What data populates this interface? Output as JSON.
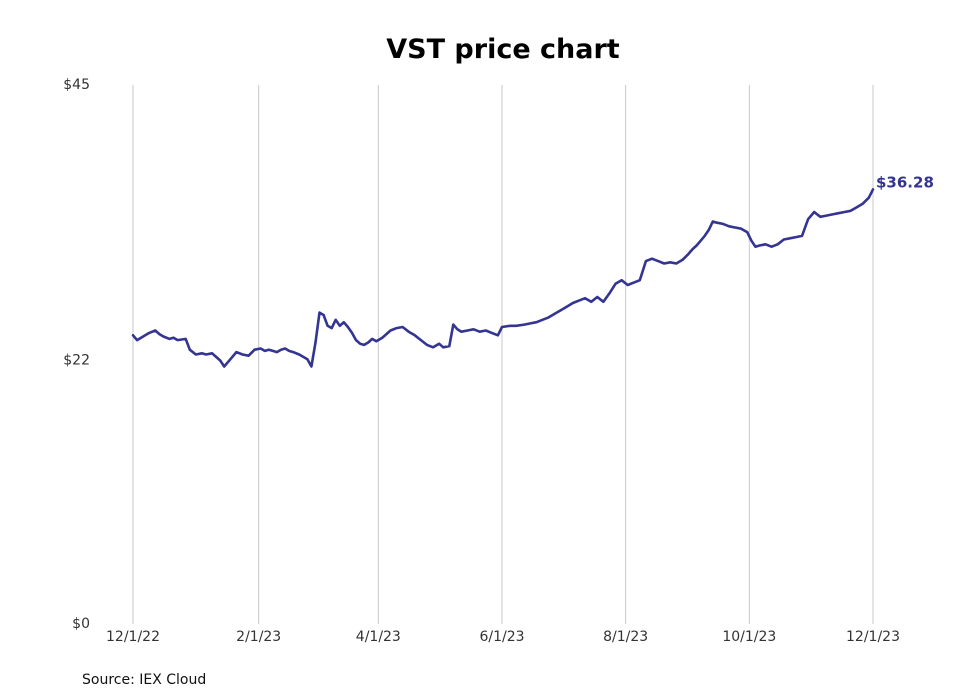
{
  "chart_data": {
    "type": "line",
    "title": "VST price chart",
    "xlabel": "",
    "ylabel": "",
    "x_ticks": [
      "12/1/22",
      "2/1/23",
      "4/1/23",
      "6/1/23",
      "8/1/23",
      "10/1/23",
      "12/1/23"
    ],
    "x_range": [
      "2022-12-01",
      "2023-12-01"
    ],
    "y_ticks": [
      "$0",
      "$22",
      "$45"
    ],
    "y_tick_values": [
      0,
      22,
      45
    ],
    "ylim": [
      0,
      45
    ],
    "grid": "vertical",
    "line_color": "#343493",
    "gridline_color": "#c8c8c8",
    "end_label": "$36.28",
    "source": "Source: IEX Cloud",
    "series": [
      {
        "values": [
          [
            "2022-12-01",
            24.1
          ],
          [
            "2022-12-03",
            23.7
          ],
          [
            "2022-12-05",
            23.9
          ],
          [
            "2022-12-07",
            24.1
          ],
          [
            "2022-12-09",
            24.3
          ],
          [
            "2022-12-12",
            24.5
          ],
          [
            "2022-12-14",
            24.2
          ],
          [
            "2022-12-16",
            24.0
          ],
          [
            "2022-12-19",
            23.8
          ],
          [
            "2022-12-21",
            23.9
          ],
          [
            "2022-12-23",
            23.7
          ],
          [
            "2022-12-27",
            23.8
          ],
          [
            "2022-12-29",
            22.9
          ],
          [
            "2023-01-01",
            22.5
          ],
          [
            "2023-01-04",
            22.6
          ],
          [
            "2023-01-06",
            22.5
          ],
          [
            "2023-01-09",
            22.6
          ],
          [
            "2023-01-11",
            22.3
          ],
          [
            "2023-01-13",
            22.0
          ],
          [
            "2023-01-15",
            21.5
          ],
          [
            "2023-01-17",
            21.9
          ],
          [
            "2023-01-19",
            22.3
          ],
          [
            "2023-01-21",
            22.7
          ],
          [
            "2023-01-24",
            22.5
          ],
          [
            "2023-01-27",
            22.4
          ],
          [
            "2023-01-30",
            22.9
          ],
          [
            "2023-02-02",
            23.0
          ],
          [
            "2023-02-04",
            22.8
          ],
          [
            "2023-02-06",
            22.9
          ],
          [
            "2023-02-08",
            22.8
          ],
          [
            "2023-02-10",
            22.7
          ],
          [
            "2023-02-12",
            22.9
          ],
          [
            "2023-02-14",
            23.0
          ],
          [
            "2023-02-16",
            22.8
          ],
          [
            "2023-02-18",
            22.7
          ],
          [
            "2023-02-21",
            22.5
          ],
          [
            "2023-02-23",
            22.3
          ],
          [
            "2023-02-25",
            22.1
          ],
          [
            "2023-02-27",
            21.5
          ],
          [
            "2023-03-01",
            23.5
          ],
          [
            "2023-03-03",
            26.0
          ],
          [
            "2023-03-05",
            25.8
          ],
          [
            "2023-03-07",
            24.9
          ],
          [
            "2023-03-09",
            24.7
          ],
          [
            "2023-03-11",
            25.4
          ],
          [
            "2023-03-13",
            24.9
          ],
          [
            "2023-03-15",
            25.2
          ],
          [
            "2023-03-17",
            24.8
          ],
          [
            "2023-03-19",
            24.3
          ],
          [
            "2023-03-21",
            23.7
          ],
          [
            "2023-03-23",
            23.4
          ],
          [
            "2023-03-25",
            23.3
          ],
          [
            "2023-03-27",
            23.5
          ],
          [
            "2023-03-29",
            23.8
          ],
          [
            "2023-03-31",
            23.6
          ],
          [
            "2023-04-03",
            23.9
          ],
          [
            "2023-04-05",
            24.2
          ],
          [
            "2023-04-07",
            24.5
          ],
          [
            "2023-04-10",
            24.7
          ],
          [
            "2023-04-13",
            24.8
          ],
          [
            "2023-04-16",
            24.4
          ],
          [
            "2023-04-19",
            24.1
          ],
          [
            "2023-04-22",
            23.7
          ],
          [
            "2023-04-25",
            23.3
          ],
          [
            "2023-04-28",
            23.1
          ],
          [
            "2023-05-01",
            23.4
          ],
          [
            "2023-05-03",
            23.1
          ],
          [
            "2023-05-06",
            23.2
          ],
          [
            "2023-05-08",
            25.0
          ],
          [
            "2023-05-10",
            24.6
          ],
          [
            "2023-05-12",
            24.4
          ],
          [
            "2023-05-15",
            24.5
          ],
          [
            "2023-05-18",
            24.6
          ],
          [
            "2023-05-21",
            24.4
          ],
          [
            "2023-05-24",
            24.5
          ],
          [
            "2023-05-27",
            24.3
          ],
          [
            "2023-05-30",
            24.1
          ],
          [
            "2023-06-01",
            24.8
          ],
          [
            "2023-06-05",
            24.9
          ],
          [
            "2023-06-08",
            24.9
          ],
          [
            "2023-06-12",
            25.0
          ],
          [
            "2023-06-15",
            25.1
          ],
          [
            "2023-06-18",
            25.2
          ],
          [
            "2023-06-21",
            25.4
          ],
          [
            "2023-06-24",
            25.6
          ],
          [
            "2023-06-27",
            25.9
          ],
          [
            "2023-06-30",
            26.2
          ],
          [
            "2023-07-03",
            26.5
          ],
          [
            "2023-07-06",
            26.8
          ],
          [
            "2023-07-09",
            27.0
          ],
          [
            "2023-07-12",
            27.2
          ],
          [
            "2023-07-15",
            26.9
          ],
          [
            "2023-07-18",
            27.3
          ],
          [
            "2023-07-21",
            26.9
          ],
          [
            "2023-07-24",
            27.6
          ],
          [
            "2023-07-27",
            28.4
          ],
          [
            "2023-07-30",
            28.7
          ],
          [
            "2023-08-02",
            28.3
          ],
          [
            "2023-08-05",
            28.5
          ],
          [
            "2023-08-08",
            28.7
          ],
          [
            "2023-08-11",
            30.3
          ],
          [
            "2023-08-14",
            30.5
          ],
          [
            "2023-08-17",
            30.3
          ],
          [
            "2023-08-20",
            30.1
          ],
          [
            "2023-08-23",
            30.2
          ],
          [
            "2023-08-26",
            30.1
          ],
          [
            "2023-08-29",
            30.4
          ],
          [
            "2023-09-01",
            30.9
          ],
          [
            "2023-09-03",
            31.3
          ],
          [
            "2023-09-05",
            31.6
          ],
          [
            "2023-09-07",
            32.0
          ],
          [
            "2023-09-09",
            32.4
          ],
          [
            "2023-09-11",
            32.9
          ],
          [
            "2023-09-13",
            33.6
          ],
          [
            "2023-09-15",
            33.5
          ],
          [
            "2023-09-18",
            33.4
          ],
          [
            "2023-09-21",
            33.2
          ],
          [
            "2023-09-24",
            33.1
          ],
          [
            "2023-09-27",
            33.0
          ],
          [
            "2023-09-30",
            32.7
          ],
          [
            "2023-10-02",
            32.0
          ],
          [
            "2023-10-04",
            31.5
          ],
          [
            "2023-10-06",
            31.6
          ],
          [
            "2023-10-09",
            31.7
          ],
          [
            "2023-10-12",
            31.5
          ],
          [
            "2023-10-15",
            31.7
          ],
          [
            "2023-10-18",
            32.1
          ],
          [
            "2023-10-21",
            32.2
          ],
          [
            "2023-10-24",
            32.3
          ],
          [
            "2023-10-27",
            32.4
          ],
          [
            "2023-10-30",
            33.8
          ],
          [
            "2023-11-02",
            34.4
          ],
          [
            "2023-11-05",
            34.0
          ],
          [
            "2023-11-08",
            34.1
          ],
          [
            "2023-11-11",
            34.2
          ],
          [
            "2023-11-14",
            34.3
          ],
          [
            "2023-11-17",
            34.4
          ],
          [
            "2023-11-20",
            34.5
          ],
          [
            "2023-11-23",
            34.8
          ],
          [
            "2023-11-26",
            35.1
          ],
          [
            "2023-11-29",
            35.6
          ],
          [
            "2023-12-01",
            36.28
          ]
        ]
      }
    ]
  }
}
